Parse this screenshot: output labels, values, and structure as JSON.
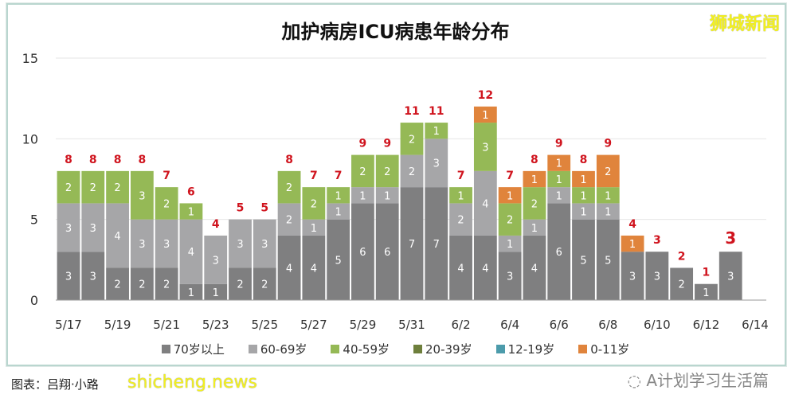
{
  "watermark_top": "狮城新闻",
  "watermark_bottom": "shicheng.news",
  "caption": "图表：吕翔·小路",
  "wechat_account": "A计划学习生活篇",
  "chart_data": {
    "type": "bar",
    "stacked": true,
    "title": "加护病房ICU病患年龄分布",
    "xlabel": "",
    "ylabel": "",
    "ylim": [
      0,
      15
    ],
    "yticks": [
      0,
      5,
      10,
      15
    ],
    "grid": true,
    "legend_position": "bottom",
    "categories": [
      "5/17",
      "5/18",
      "5/19",
      "5/20",
      "5/21",
      "5/22",
      "5/23",
      "5/24",
      "5/25",
      "5/26",
      "5/27",
      "5/28",
      "5/29",
      "5/30",
      "5/31",
      "6/1",
      "6/2",
      "6/3",
      "6/4",
      "6/5",
      "6/6",
      "6/7",
      "6/8",
      "6/9",
      "6/10",
      "6/11",
      "6/12",
      "6/13"
    ],
    "xtick_labels": [
      "5/17",
      "5/19",
      "5/21",
      "5/23",
      "5/25",
      "5/27",
      "5/29",
      "5/31",
      "6/2",
      "6/4",
      "6/6",
      "6/8",
      "6/10",
      "6/12",
      "6/14"
    ],
    "series": [
      {
        "name": "70岁以上",
        "color": "#7f7f80",
        "values": [
          3,
          3,
          2,
          2,
          2,
          1,
          1,
          2,
          2,
          4,
          4,
          5,
          6,
          6,
          7,
          7,
          4,
          4,
          3,
          4,
          6,
          5,
          5,
          3,
          3,
          2,
          1,
          3
        ]
      },
      {
        "name": "60-69岁",
        "color": "#a6a6a8",
        "values": [
          3,
          3,
          4,
          3,
          3,
          4,
          3,
          3,
          3,
          2,
          1,
          1,
          1,
          1,
          2,
          3,
          2,
          4,
          1,
          1,
          1,
          1,
          1,
          0,
          0,
          0,
          0,
          0
        ]
      },
      {
        "name": "40-59岁",
        "color": "#95b956",
        "values": [
          2,
          2,
          2,
          3,
          2,
          1,
          0,
          0,
          0,
          2,
          2,
          1,
          2,
          2,
          2,
          1,
          1,
          3,
          2,
          2,
          1,
          1,
          1,
          0,
          0,
          0,
          0,
          0
        ]
      },
      {
        "name": "20-39岁",
        "color": "#6e7f3c",
        "values": [
          0,
          0,
          0,
          0,
          0,
          0,
          0,
          0,
          0,
          0,
          0,
          0,
          0,
          0,
          0,
          0,
          0,
          0,
          0,
          0,
          0,
          0,
          0,
          0,
          0,
          0,
          0,
          0
        ]
      },
      {
        "name": "12-19岁",
        "color": "#4c9bab",
        "values": [
          0,
          0,
          0,
          0,
          0,
          0,
          0,
          0,
          0,
          0,
          0,
          0,
          0,
          0,
          0,
          0,
          0,
          0,
          0,
          0,
          0,
          0,
          0,
          0,
          0,
          0,
          0,
          0
        ]
      },
      {
        "name": "0-11岁",
        "color": "#e0843c",
        "values": [
          0,
          0,
          0,
          0,
          0,
          0,
          0,
          0,
          0,
          0,
          0,
          0,
          0,
          0,
          0,
          0,
          0,
          1,
          1,
          1,
          1,
          1,
          2,
          1,
          0,
          0,
          0,
          0
        ]
      }
    ],
    "totals": [
      8,
      8,
      8,
      8,
      7,
      6,
      4,
      5,
      5,
      8,
      7,
      7,
      9,
      9,
      11,
      11,
      7,
      12,
      7,
      8,
      9,
      8,
      9,
      4,
      3,
      2,
      1,
      3
    ],
    "total_label_color": "#d0141e"
  }
}
